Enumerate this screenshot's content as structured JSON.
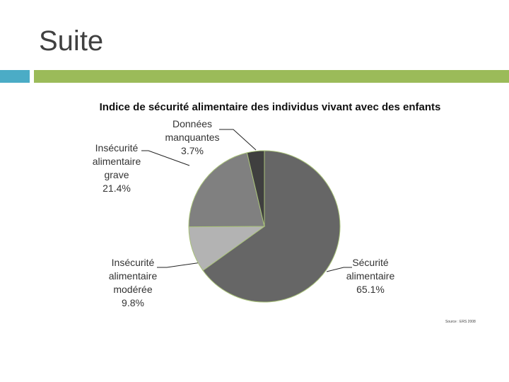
{
  "slide": {
    "title": "Suite"
  },
  "chart_data": {
    "type": "pie",
    "title": "Indice de sécurité alimentaire des individus vivant avec des enfants",
    "categories": [
      "Sécurité alimentaire",
      "Insécurité alimentaire modérée",
      "Insécurité alimentaire grave",
      "Données manquantes"
    ],
    "values": [
      65.1,
      9.8,
      21.4,
      3.7
    ],
    "value_labels": [
      "65.1%",
      "9.8%",
      "21.4%",
      "3.7%"
    ],
    "colors": [
      "#666666",
      "#b3b3b3",
      "#808080",
      "#3f3f3f"
    ],
    "source": "Source : ERS 2008"
  }
}
